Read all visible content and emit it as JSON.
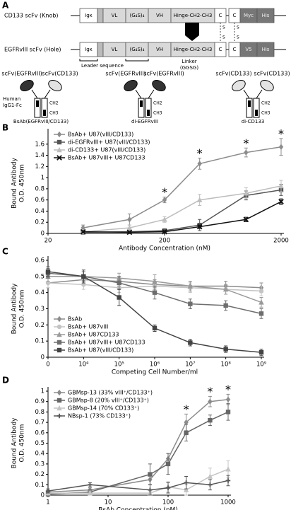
{
  "diagram": {
    "panel": "A",
    "constructs": [
      {
        "name": "CD133 scFv (Knob)",
        "segments": [
          "Igκ",
          "VL",
          "(G₄S)₄",
          "VH",
          "Hinge-CH2-CH3",
          "C",
          "C",
          "Myc",
          "His"
        ]
      },
      {
        "name": "EGFRvIII scFv (Hole)",
        "segments": [
          "Igκ",
          "VL",
          "(G₄S)₄",
          "VH",
          "Hinge-CH2-CH3",
          "C",
          "C",
          "V5",
          "His"
        ]
      }
    ],
    "disulfide": "S",
    "leader": "Leader sequence",
    "linker": [
      "Linker",
      "(GGSG)"
    ],
    "fc_label": [
      "Human",
      "IgG1-Fc"
    ],
    "domains": [
      "CH2",
      "CH3"
    ],
    "antibodies": [
      {
        "left": "scFv(EGFRvIII)",
        "right": "scFv(CD133)",
        "name": "BsAb(EGFRvIII/CD133)"
      },
      {
        "left": "scFv(EGFRvIII)",
        "right": "scFv(EGFRvIII)",
        "name": "di-EGFRvIII"
      },
      {
        "left": "scFv(CD133)",
        "right": "scFv(CD133)",
        "name": "di-CD133"
      }
    ]
  },
  "chart_data": [
    {
      "type": "line",
      "panel": "B",
      "ylabel": [
        "Bound Antibody",
        "O.D. 450nm"
      ],
      "xlabel": "Antibody Concentration (nM)",
      "xscale": "log",
      "x": [
        40,
        100,
        200,
        400,
        1000,
        2000
      ],
      "xlim": [
        20,
        2000
      ],
      "xticks": [
        20,
        200,
        2000
      ],
      "ylim": [
        0,
        1.8
      ],
      "yticks": [
        0,
        0.2,
        0.4,
        0.6,
        0.8,
        1,
        1.2,
        1.4,
        1.6
      ],
      "grid": false,
      "legend": "upper left",
      "mark_text": "*",
      "series": [
        {
          "name": "BsAb+ U87(vIII/CD133)",
          "color": "#8c8c8c",
          "marker": "diamond",
          "values": [
            0.1,
            0.25,
            0.6,
            1.25,
            1.45,
            1.55
          ],
          "errors": [
            0.05,
            0.1,
            0.05,
            0.1,
            0.08,
            0.15
          ],
          "significant": [
            false,
            false,
            true,
            true,
            true,
            true
          ]
        },
        {
          "name": "di-EGFRvIII+ U87(vIII/CD133)",
          "color": "#555555",
          "marker": "square",
          "values": [
            0.02,
            0.03,
            0.05,
            0.15,
            0.68,
            0.78
          ],
          "errors": [
            0.02,
            0.02,
            0.02,
            0.1,
            0.08,
            0.1
          ]
        },
        {
          "name": "di-CD133+ U87(vIII/CD133)",
          "color": "#bdbdbd",
          "marker": "triangle",
          "values": [
            0.03,
            0.1,
            0.25,
            0.6,
            0.72,
            0.85
          ],
          "errors": [
            0.03,
            0.05,
            0.05,
            0.1,
            0.1,
            0.1
          ]
        },
        {
          "name": "BsAb+ U87vIII+ U87CD133",
          "color": "#111111",
          "marker": "x",
          "values": [
            0.03,
            0.02,
            0.03,
            0.12,
            0.25,
            0.57
          ],
          "errors": [
            0.02,
            0.02,
            0.02,
            0.03,
            0.04,
            0.05
          ]
        }
      ]
    },
    {
      "type": "line",
      "panel": "C",
      "ylabel": [
        "Bound Antibody",
        "O.D. 450nm"
      ],
      "xlabel": "Competing Cell Number/ml",
      "categories": [
        "0",
        "10⁴",
        "10⁵",
        "10⁶",
        "10⁷",
        "10⁸",
        "10⁹"
      ],
      "ylim": [
        0,
        0.6
      ],
      "yticks": [
        0,
        0.1,
        0.2,
        0.3,
        0.4,
        0.5,
        0.6
      ],
      "grid": false,
      "legend": "lower left",
      "series": [
        {
          "name": "BsAb",
          "color": "#8c8c8c",
          "marker": "diamond",
          "values": [
            0.46,
            0.48,
            0.47,
            0.45,
            0.44,
            0.44,
            0.43
          ],
          "errors": [
            0.03,
            0.03,
            0.03,
            0.03,
            0.03,
            0.03,
            0.03
          ]
        },
        {
          "name": "BsAb+ U87vIII",
          "color": "#c4c4c4",
          "marker": "circle",
          "values": [
            0.46,
            0.45,
            0.43,
            0.44,
            0.43,
            0.42,
            0.41
          ],
          "errors": [
            0.03,
            0.03,
            0.03,
            0.03,
            0.03,
            0.03,
            0.03
          ]
        },
        {
          "name": "BsAb+ U87CD133",
          "color": "#9a9a9a",
          "marker": "triangle",
          "values": [
            0.5,
            0.5,
            0.49,
            0.47,
            0.44,
            0.42,
            0.34
          ],
          "errors": [
            0.03,
            0.03,
            0.03,
            0.04,
            0.03,
            0.03,
            0.03
          ]
        },
        {
          "name": "BsAb+ U87vIII+ U87CD133",
          "color": "#6e6e6e",
          "marker": "square",
          "values": [
            0.52,
            0.5,
            0.46,
            0.4,
            0.33,
            0.32,
            0.27
          ],
          "errors": [
            0.03,
            0.03,
            0.04,
            0.04,
            0.03,
            0.03,
            0.03
          ]
        },
        {
          "name": "BsAb+ U87(vIII/CD133)",
          "color": "#444444",
          "marker": "square",
          "values": [
            0.53,
            0.5,
            0.37,
            0.18,
            0.09,
            0.05,
            0.03
          ],
          "errors": [
            0.03,
            0.04,
            0.05,
            0.02,
            0.02,
            0.02,
            0.02
          ]
        }
      ]
    },
    {
      "type": "line",
      "panel": "D",
      "ylabel": [
        "Bound Antibody",
        "O.D. 450nm"
      ],
      "xlabel": "BsAb Concentration (nM)",
      "xscale": "log",
      "x": [
        1,
        5,
        50,
        100,
        200,
        500,
        1000
      ],
      "xlim": [
        1,
        1000
      ],
      "xticks": [
        1,
        10,
        100,
        1000
      ],
      "ylim": [
        0,
        1
      ],
      "yticks": [
        0,
        0.1,
        0.2,
        0.3,
        0.4,
        0.5,
        0.6,
        0.7,
        0.8,
        0.9,
        1
      ],
      "grid": false,
      "legend": "upper left",
      "mark_text": "*",
      "series": [
        {
          "name": "GBMsp-13 (33% vIII⁺/CD133⁺)",
          "color": "#8c8c8c",
          "marker": "diamond",
          "values": [
            0.03,
            0.05,
            0.15,
            0.35,
            0.7,
            0.9,
            0.92
          ],
          "errors": [
            0.02,
            0.02,
            0.05,
            0.05,
            0.08,
            0.05,
            0.05
          ],
          "significant": [
            false,
            false,
            false,
            false,
            true,
            true,
            true
          ]
        },
        {
          "name": "GBMsp-8 (20% vIII⁺/CD133⁺)",
          "color": "#666666",
          "marker": "square",
          "values": [
            0.01,
            0.03,
            0.2,
            0.3,
            0.6,
            0.72,
            0.8
          ],
          "errors": [
            0.02,
            0.02,
            0.1,
            0.1,
            0.08,
            0.05,
            0.08
          ]
        },
        {
          "name": "GBMsp-14 (70% CD133⁺)",
          "color": "#c4c4c4",
          "marker": "triangle",
          "values": [
            0.02,
            0.02,
            0.02,
            0.08,
            0.05,
            0.18,
            0.25
          ],
          "errors": [
            0.02,
            0.02,
            0.02,
            0.05,
            0.05,
            0.08,
            0.08
          ]
        },
        {
          "name": "NBsp-1 (73% CD133⁺)",
          "color": "#555555",
          "marker": "plus",
          "values": [
            0.04,
            0.1,
            0.05,
            0.07,
            0.12,
            0.1,
            0.14
          ],
          "errors": [
            0.02,
            0.02,
            0.05,
            0.05,
            0.06,
            0.05,
            0.05
          ]
        }
      ]
    }
  ]
}
